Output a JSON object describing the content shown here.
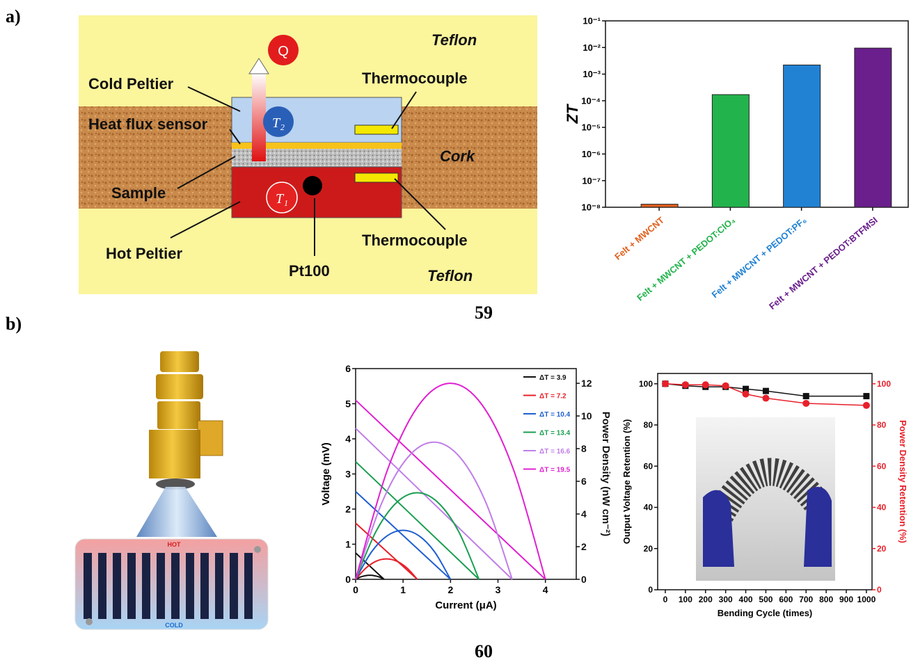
{
  "labels": {
    "panel_a": "a)",
    "panel_b": "b)",
    "ref_a": "59",
    "ref_b": "60"
  },
  "diagram_a": {
    "teflon_top": "Teflon",
    "cold_peltier": "Cold Peltier",
    "thermocouple_top": "Thermocouple",
    "heat_flux_sensor": "Heat flux sensor",
    "cork": "Cork",
    "sample": "Sample",
    "hot_peltier": "Hot Peltier",
    "thermocouple_bottom": "Thermocouple",
    "pt100": "Pt100",
    "teflon_bottom": "Teflon",
    "heat": "Q",
    "t2": "T₂",
    "t1": "T₁"
  },
  "diagram_b": {
    "hot": "HOT",
    "cold": "COLD"
  },
  "chart_data": [
    {
      "type": "bar",
      "y_label": "ZT",
      "yscale": "log",
      "categories": [
        "Felt + MWCNT",
        "Felt + MWCNT + PEDOT:ClO₄",
        "Felt + MWCNT + PEDOT:PF₆",
        "Felt + MWCNT + PEDOT:BTFMSI"
      ],
      "values": [
        1.3e-08,
        0.00017,
        0.0022,
        0.0095
      ],
      "colors": [
        "#e2601e",
        "#22b34c",
        "#2182d4",
        "#6a1f8c"
      ],
      "ylim": [
        1e-08,
        0.1
      ],
      "yticks": [
        {
          "value": 1e-08,
          "label": "10⁻⁸"
        },
        {
          "value": 1e-07,
          "label": "10⁻⁷"
        },
        {
          "value": 1e-06,
          "label": "10⁻⁶"
        },
        {
          "value": 1e-05,
          "label": "10⁻⁵"
        },
        {
          "value": 0.0001,
          "label": "10⁻⁴"
        },
        {
          "value": 0.001,
          "label": "10⁻³"
        },
        {
          "value": 0.01,
          "label": "10⁻²"
        },
        {
          "value": 0.1,
          "label": "10⁻¹"
        }
      ]
    },
    {
      "type": "line",
      "x_label": "Current (μA)",
      "y_label": "Voltage (mV)",
      "y2_label": "Power Density (nW cm⁻²)",
      "smooth": true,
      "legend": "upper right",
      "xlim": [
        0,
        4.65
      ],
      "xticks": [
        0,
        1,
        2,
        3,
        4
      ],
      "ylim": [
        0,
        6
      ],
      "yticks": [
        0,
        1,
        2,
        3,
        4,
        5,
        6
      ],
      "y2lim": [
        0,
        12.9
      ],
      "y2ticks": [
        0,
        2,
        4,
        6,
        8,
        10,
        12
      ],
      "series": [
        {
          "name": "ΔT = 3.9",
          "color": "#111111",
          "x": [
            0,
            0.6
          ],
          "values": [
            0.75,
            0
          ]
        },
        {
          "name": "ΔT = 7.2",
          "color": "#e8202a",
          "x": [
            0,
            1.3
          ],
          "values": [
            1.6,
            0
          ]
        },
        {
          "name": "ΔT = 10.4",
          "color": "#1f5fd0",
          "x": [
            0,
            2.0
          ],
          "values": [
            2.5,
            0
          ]
        },
        {
          "name": "ΔT = 13.4",
          "color": "#1a9e50",
          "x": [
            0,
            2.6
          ],
          "values": [
            3.35,
            0
          ]
        },
        {
          "name": "ΔT = 16.6",
          "color": "#c07ee8",
          "x": [
            0,
            3.3
          ],
          "values": [
            4.3,
            0
          ]
        },
        {
          "name": "ΔT = 19.5",
          "color": "#e020d0",
          "x": [
            0,
            4.0
          ],
          "values": [
            5.1,
            0
          ]
        },
        {
          "color": "#111111",
          "axis": "y2",
          "x": [
            0,
            0.1,
            0.2,
            0.3,
            0.4,
            0.5,
            0.6
          ],
          "values": [
            0,
            0.14,
            0.22,
            0.25,
            0.22,
            0.14,
            0
          ]
        },
        {
          "color": "#e8202a",
          "axis": "y2",
          "x": [
            0,
            0.217,
            0.433,
            0.65,
            0.867,
            1.083,
            1.3
          ],
          "values": [
            0,
            0.69,
            1.11,
            1.25,
            1.11,
            0.69,
            0
          ]
        },
        {
          "color": "#1f5fd0",
          "axis": "y2",
          "x": [
            0,
            0.333,
            0.667,
            1,
            1.333,
            1.667,
            2
          ],
          "values": [
            0,
            1.67,
            2.67,
            3.0,
            2.67,
            1.67,
            0
          ]
        },
        {
          "color": "#1a9e50",
          "axis": "y2",
          "x": [
            0,
            0.433,
            0.867,
            1.3,
            1.733,
            2.167,
            2.6
          ],
          "values": [
            0,
            2.95,
            4.71,
            5.3,
            4.71,
            2.95,
            0
          ]
        },
        {
          "color": "#c07ee8",
          "axis": "y2",
          "x": [
            0,
            0.55,
            1.1,
            1.65,
            2.2,
            2.75,
            3.3
          ],
          "values": [
            0,
            4.67,
            7.47,
            8.4,
            7.47,
            4.67,
            0
          ]
        },
        {
          "color": "#e020d0",
          "axis": "y2",
          "x": [
            0,
            0.667,
            1.333,
            2,
            2.667,
            3.333,
            4
          ],
          "values": [
            0,
            6.67,
            10.67,
            12,
            10.67,
            6.67,
            0
          ]
        }
      ]
    },
    {
      "type": "line",
      "x_label": "Bending Cycle (times)",
      "y_label": "Output Voltage Retention (%)",
      "y2_label": "Power Density Retention (%)",
      "y2_color": "#e8202a",
      "smooth": false,
      "xlim": [
        -38,
        1028
      ],
      "xticks": [
        0,
        100,
        200,
        300,
        400,
        500,
        600,
        700,
        800,
        900,
        1000
      ],
      "ylim": [
        0,
        105
      ],
      "yticks": [
        0,
        20,
        40,
        60,
        80,
        100
      ],
      "y2lim": [
        0,
        105
      ],
      "y2ticks": [
        0,
        20,
        40,
        60,
        80,
        100
      ],
      "series": [
        {
          "color": "#111111",
          "marker": "square",
          "x": [
            0,
            100,
            200,
            300,
            400,
            500,
            700,
            1000
          ],
          "values": [
            100,
            99,
            98.5,
            98.5,
            97.5,
            96.5,
            94,
            94
          ]
        },
        {
          "color": "#e8202a",
          "marker": "circle",
          "axis": "y2",
          "x": [
            0,
            100,
            200,
            300,
            400,
            500,
            700,
            1000
          ],
          "values": [
            100,
            99.5,
            99.5,
            99,
            95,
            93,
            90.5,
            89.5
          ]
        }
      ]
    }
  ]
}
